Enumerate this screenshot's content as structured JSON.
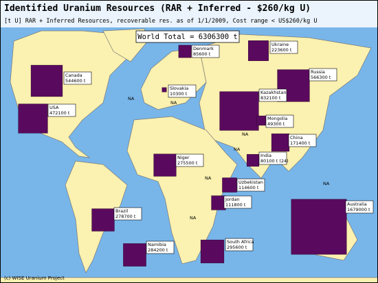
{
  "title": "Identified Uranium Resources (RAR + Inferred - $260/kg U)",
  "subtitle": "[t U] RAR + Inferred Resources, recoverable res. as of 1/1/2009, Cost range < US$260/kg U",
  "world_total": "World Total = 6306300 t",
  "na_label": "NA",
  "footer": "(c) WISE Uranium Project",
  "countries": [
    {
      "name": "Denmark",
      "value": 85600,
      "value_label": "85600 t"
    },
    {
      "name": "Ukraine",
      "value": 223600,
      "value_label": "223600 t"
    },
    {
      "name": "Canada",
      "value": 544600,
      "value_label": "544600 t"
    },
    {
      "name": "Slovakia",
      "value": 10300,
      "value_label": "10300 t"
    },
    {
      "name": "USA",
      "value": 472100,
      "value_label": "472100 t"
    },
    {
      "name": "Russia",
      "value": 566300,
      "value_label": "566300 t"
    },
    {
      "name": "Kazakhstan",
      "value": 832100,
      "value_label": "832100 t"
    },
    {
      "name": "Mongolia",
      "value": 49300,
      "value_label": "49300 t"
    },
    {
      "name": "China",
      "value": 171400,
      "value_label": "171400 t"
    },
    {
      "name": "India",
      "value": 80100,
      "value_label": "80100 t (24)"
    },
    {
      "name": "Niger",
      "value": 275500,
      "value_label": "275500 t"
    },
    {
      "name": "Uzbekistan",
      "value": 114600,
      "value_label": "114600 t"
    },
    {
      "name": "Jordan",
      "value": 111800,
      "value_label": "111800 t"
    },
    {
      "name": "Brazil",
      "value": 278700,
      "value_label": "278700 t"
    },
    {
      "name": "Australia",
      "value": 1679000,
      "value_label": "1679000 t"
    },
    {
      "name": "Namibia",
      "value": 284200,
      "value_label": "284200 t"
    },
    {
      "name": "South Africa",
      "value": 295600,
      "value_label": "295600 t"
    }
  ]
}
